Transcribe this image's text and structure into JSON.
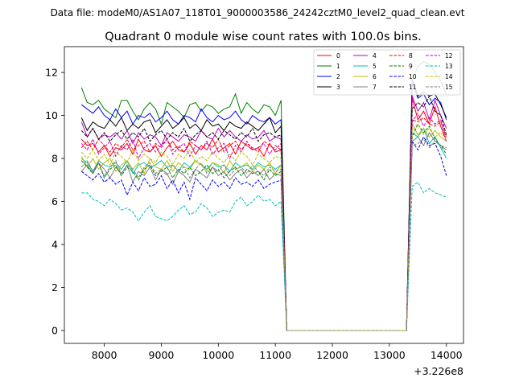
{
  "header": {
    "suptitle": "Data file: modeM0/AS1A07_118T01_9000003586_24242cztM0_level2_quad_clean.evt"
  },
  "chart_data": {
    "type": "line",
    "title": "Quadrant 0 module wise count rates with 100.0s bins.",
    "xlabel": "",
    "ylabel": "",
    "x_offset_label": "+3.226e8",
    "xlim": [
      7300,
      14300
    ],
    "ylim": [
      -0.6,
      13.2
    ],
    "xticks": [
      8000,
      9000,
      10000,
      11000,
      12000,
      13000,
      14000
    ],
    "xtick_labels": [
      "8000",
      "9000",
      "10000",
      "11000",
      "12000",
      "13000",
      "14000"
    ],
    "yticks": [
      0,
      2,
      4,
      6,
      8,
      10,
      12
    ],
    "ytick_labels": [
      "0",
      "2",
      "4",
      "6",
      "8",
      "10",
      "12"
    ],
    "grid": false,
    "legend_position": "top-right",
    "segments": {
      "first": {
        "x_start": 7600,
        "x_step": 100,
        "count": 36
      },
      "gap": [
        11200,
        13300
      ],
      "second": [
        13400,
        13500,
        13600,
        13700,
        13800,
        13900,
        14000
      ]
    },
    "series": [
      {
        "name": "0",
        "color": "#ff0000",
        "dash": "solid",
        "values": [
          8.9,
          8.6,
          8.7,
          8.3,
          8.6,
          8.1,
          8.5,
          8.4,
          8.7,
          8.2,
          8.9,
          8.4,
          8.3,
          8.6,
          8.1,
          8.5,
          8.8,
          8.4,
          8.3,
          8.7,
          8.2,
          8.6,
          8.4,
          8.9,
          8.3,
          8.5,
          8.7,
          8.2,
          8.8,
          8.6,
          8.4,
          8.5,
          8.1,
          8.7,
          8.3,
          8.4
        ],
        "tail": [
          10.8,
          9.8,
          10.2,
          9.6,
          10.4,
          9.5,
          8.8
        ]
      },
      {
        "name": "1",
        "color": "#008000",
        "dash": "solid",
        "values": [
          11.3,
          10.6,
          10.5,
          10.7,
          10.3,
          10.1,
          9.9,
          10.7,
          10.7,
          10.2,
          9.8,
          10.3,
          10.6,
          10.3,
          9.6,
          10.6,
          10.4,
          10.2,
          9.9,
          10.5,
          10.6,
          10.2,
          10.5,
          10.4,
          10.1,
          10.3,
          10.4,
          11.0,
          10.1,
          10.6,
          10.3,
          10.1,
          10.5,
          10.4,
          10.0,
          10.7
        ],
        "tail": [
          11.6,
          12.3,
          12.5,
          12.4,
          12.0,
          11.6,
          11.0
        ]
      },
      {
        "name": "2",
        "color": "#0000ff",
        "dash": "solid",
        "values": [
          10.5,
          10.3,
          10.1,
          10.4,
          10.0,
          9.8,
          10.3,
          9.9,
          10.2,
          9.6,
          10.0,
          9.9,
          10.1,
          9.7,
          9.9,
          10.2,
          9.8,
          9.6,
          10.0,
          9.9,
          9.7,
          10.3,
          9.9,
          9.7,
          10.0,
          9.8,
          9.9,
          10.2,
          9.8,
          9.6,
          10.0,
          9.8,
          9.7,
          9.9,
          9.6,
          9.8
        ],
        "tail": [
          11.5,
          10.8,
          11.0,
          10.5,
          10.8,
          10.6,
          9.8
        ]
      },
      {
        "name": "3",
        "color": "#000000",
        "dash": "solid",
        "values": [
          9.9,
          9.3,
          9.7,
          9.5,
          9.4,
          9.8,
          9.5,
          9.9,
          9.3,
          9.6,
          9.4,
          9.7,
          9.8,
          9.2,
          9.5,
          9.8,
          9.4,
          9.6,
          9.9,
          9.4,
          9.6,
          9.3,
          9.8,
          9.5,
          9.6,
          9.3,
          9.7,
          9.5,
          9.4,
          9.7,
          9.5,
          9.3,
          9.6,
          9.9,
          9.2,
          9.5
        ],
        "tail": [
          11.7,
          10.9,
          11.1,
          10.9,
          11.0,
          10.5,
          9.9
        ]
      },
      {
        "name": "4",
        "color": "#bf00bf",
        "dash": "solid",
        "values": [
          9.7,
          9.0,
          9.4,
          8.9,
          9.1,
          9.0,
          9.2,
          8.9,
          9.3,
          8.7,
          9.2,
          8.9,
          9.1,
          9.0,
          8.6,
          9.2,
          9.0,
          8.8,
          9.1,
          9.0,
          8.8,
          9.3,
          9.0,
          8.9,
          9.4,
          9.0,
          9.3,
          9.0,
          8.8,
          9.1,
          8.9,
          9.0,
          9.3,
          8.8,
          9.0,
          8.9
        ],
        "tail": [
          10.9,
          10.2,
          10.6,
          9.8,
          10.7,
          10.0,
          9.4
        ]
      },
      {
        "name": "5",
        "color": "#00bfbf",
        "dash": "solid",
        "values": [
          8.0,
          7.8,
          7.4,
          7.9,
          7.7,
          7.6,
          7.8,
          7.5,
          7.9,
          7.3,
          7.7,
          7.8,
          7.6,
          7.7,
          7.9,
          7.6,
          7.7,
          7.4,
          7.8,
          7.6,
          7.9,
          7.7,
          7.5,
          7.8,
          7.6,
          7.7,
          7.4,
          7.8,
          7.6,
          7.7,
          7.5,
          7.8,
          7.6,
          7.7,
          7.5,
          7.7
        ],
        "tail": [
          9.2,
          9.0,
          9.4,
          8.7,
          9.0,
          8.5,
          8.0
        ]
      },
      {
        "name": "6",
        "color": "#bfbf00",
        "dash": "solid",
        "values": [
          8.1,
          7.6,
          8.0,
          7.5,
          7.8,
          8.0,
          7.4,
          7.7,
          7.9,
          7.5,
          7.8,
          7.3,
          8.0,
          7.6,
          7.5,
          7.9,
          7.4,
          7.8,
          7.6,
          7.5,
          7.9,
          7.7,
          7.4,
          7.8,
          7.7,
          7.3,
          7.9,
          7.5,
          7.6,
          7.8,
          7.4,
          7.7,
          7.5,
          7.8,
          7.3,
          7.7
        ],
        "tail": [
          9.6,
          9.1,
          9.4,
          9.0,
          9.3,
          9.0,
          8.8
        ]
      },
      {
        "name": "7",
        "color": "#808080",
        "dash": "solid",
        "values": [
          7.4,
          7.7,
          7.3,
          7.8,
          7.5,
          7.1,
          7.6,
          7.3,
          7.7,
          6.9,
          7.4,
          7.2,
          7.6,
          7.0,
          7.5,
          7.3,
          6.8,
          7.4,
          7.2,
          6.9,
          7.5,
          7.3,
          7.1,
          7.6,
          7.2,
          7.4,
          7.0,
          7.3,
          7.5,
          7.1,
          7.4,
          7.2,
          7.5,
          7.0,
          7.3,
          7.2
        ],
        "tail": [
          8.8,
          9.0,
          8.6,
          9.2,
          8.8,
          8.6,
          8.4
        ]
      },
      {
        "name": "8",
        "color": "#ff0000",
        "dash": "dashed",
        "values": [
          8.5,
          8.8,
          8.4,
          8.9,
          8.6,
          8.3,
          8.7,
          8.5,
          8.9,
          8.4,
          8.6,
          8.8,
          8.3,
          8.7,
          8.5,
          8.9,
          8.4,
          8.6,
          8.3,
          8.8,
          8.6,
          8.4,
          8.7,
          8.5,
          8.9,
          8.3,
          8.6,
          8.8,
          8.4,
          8.7,
          8.5,
          8.3,
          8.8,
          8.6,
          8.4,
          8.7
        ],
        "tail": [
          9.8,
          9.7,
          9.9,
          9.6,
          9.5,
          9.7,
          9.0
        ]
      },
      {
        "name": "9",
        "color": "#008000",
        "dash": "dashed",
        "values": [
          7.9,
          7.6,
          7.3,
          7.8,
          7.1,
          7.5,
          7.7,
          7.2,
          7.6,
          7.4,
          7.0,
          7.5,
          7.7,
          7.2,
          7.4,
          7.6,
          7.1,
          7.5,
          7.3,
          7.6,
          7.2,
          7.4,
          7.7,
          7.3,
          7.5,
          7.1,
          7.4,
          7.6,
          7.2,
          7.5,
          7.3,
          7.4,
          7.0,
          7.5,
          7.2,
          7.4
        ],
        "tail": [
          9.0,
          9.6,
          9.2,
          9.5,
          8.9,
          8.6,
          8.2
        ]
      },
      {
        "name": "10",
        "color": "#0000ff",
        "dash": "dashed",
        "values": [
          7.4,
          7.2,
          7.0,
          7.3,
          6.9,
          7.1,
          6.8,
          7.0,
          6.3,
          6.9,
          6.5,
          7.1,
          6.7,
          6.8,
          7.2,
          6.6,
          7.0,
          6.4,
          6.9,
          6.1,
          7.1,
          6.8,
          6.5,
          7.0,
          6.7,
          6.9,
          6.6,
          7.1,
          6.8,
          6.9,
          6.7,
          7.0,
          6.6,
          6.8,
          6.9,
          7.0
        ],
        "tail": [
          8.8,
          8.4,
          9.0,
          8.6,
          8.7,
          8.1,
          7.2
        ]
      },
      {
        "name": "11",
        "color": "#000000",
        "dash": "dashed",
        "values": [
          9.3,
          9.0,
          9.4,
          8.9,
          9.2,
          8.8,
          9.1,
          9.3,
          8.9,
          9.2,
          9.0,
          9.4,
          8.8,
          9.1,
          9.3,
          8.9,
          9.2,
          9.0,
          9.4,
          8.8,
          9.1,
          9.3,
          9.0,
          9.2,
          8.9,
          9.3,
          9.1,
          8.9,
          9.2,
          9.0,
          9.4,
          8.8,
          9.1,
          9.2,
          9.0,
          9.1
        ],
        "tail": [
          10.3,
          10.6,
          10.4,
          10.9,
          10.2,
          10.0,
          9.1
        ]
      },
      {
        "name": "12",
        "color": "#bf00bf",
        "dash": "dashed",
        "values": [
          8.7,
          8.4,
          8.9,
          8.2,
          8.5,
          8.8,
          8.1,
          8.6,
          8.4,
          8.9,
          8.0,
          8.5,
          8.7,
          8.3,
          8.6,
          8.9,
          8.2,
          8.5,
          8.7,
          8.1,
          8.6,
          8.4,
          8.8,
          8.2,
          8.5,
          8.7,
          8.0,
          8.6,
          8.3,
          8.8,
          8.4,
          8.5,
          8.7,
          8.2,
          8.6,
          8.4
        ],
        "tail": [
          9.7,
          10.1,
          9.5,
          9.9,
          9.6,
          9.8,
          8.8
        ]
      },
      {
        "name": "13",
        "color": "#00bfbf",
        "dash": "dashed",
        "values": [
          6.4,
          6.4,
          6.1,
          6.0,
          5.8,
          6.1,
          5.9,
          5.6,
          5.7,
          5.5,
          5.1,
          5.5,
          5.8,
          5.3,
          5.2,
          5.1,
          5.3,
          5.6,
          5.8,
          5.4,
          5.5,
          5.9,
          5.7,
          5.3,
          5.5,
          5.6,
          5.5,
          6.0,
          6.2,
          5.8,
          6.0,
          6.3,
          6.0,
          6.1,
          5.8,
          6.0
        ],
        "tail": [
          6.7,
          6.9,
          6.4,
          6.6,
          6.4,
          6.3,
          6.2
        ]
      },
      {
        "name": "14",
        "color": "#bfbf00",
        "dash": "dashed",
        "values": [
          8.3,
          8.0,
          8.4,
          7.9,
          8.2,
          7.7,
          8.3,
          8.1,
          7.8,
          8.4,
          7.9,
          8.2,
          8.0,
          7.8,
          8.3,
          8.1,
          7.7,
          8.2,
          8.0,
          8.4,
          7.8,
          8.1,
          7.9,
          8.3,
          8.0,
          7.8,
          8.2,
          7.9,
          8.3,
          8.1,
          7.7,
          8.2,
          8.0,
          7.8,
          8.1,
          8.0
        ],
        "tail": [
          9.3,
          9.6,
          9.1,
          9.4,
          9.0,
          9.2,
          8.9
        ]
      },
      {
        "name": "15",
        "color": "#808080",
        "dash": "dashed",
        "values": [
          7.6,
          7.9,
          7.4,
          7.8,
          7.2,
          7.6,
          7.9,
          7.3,
          7.7,
          7.5,
          7.1,
          7.6,
          7.8,
          7.3,
          7.5,
          7.2,
          7.7,
          7.4,
          7.6,
          7.1,
          7.5,
          7.8,
          7.3,
          7.6,
          7.4,
          7.7,
          7.2,
          7.5,
          7.6,
          7.3,
          7.7,
          7.4,
          7.2,
          7.6,
          7.4,
          7.5
        ],
        "tail": [
          8.6,
          8.7,
          8.9,
          8.5,
          8.8,
          8.6,
          8.5
        ]
      }
    ]
  }
}
